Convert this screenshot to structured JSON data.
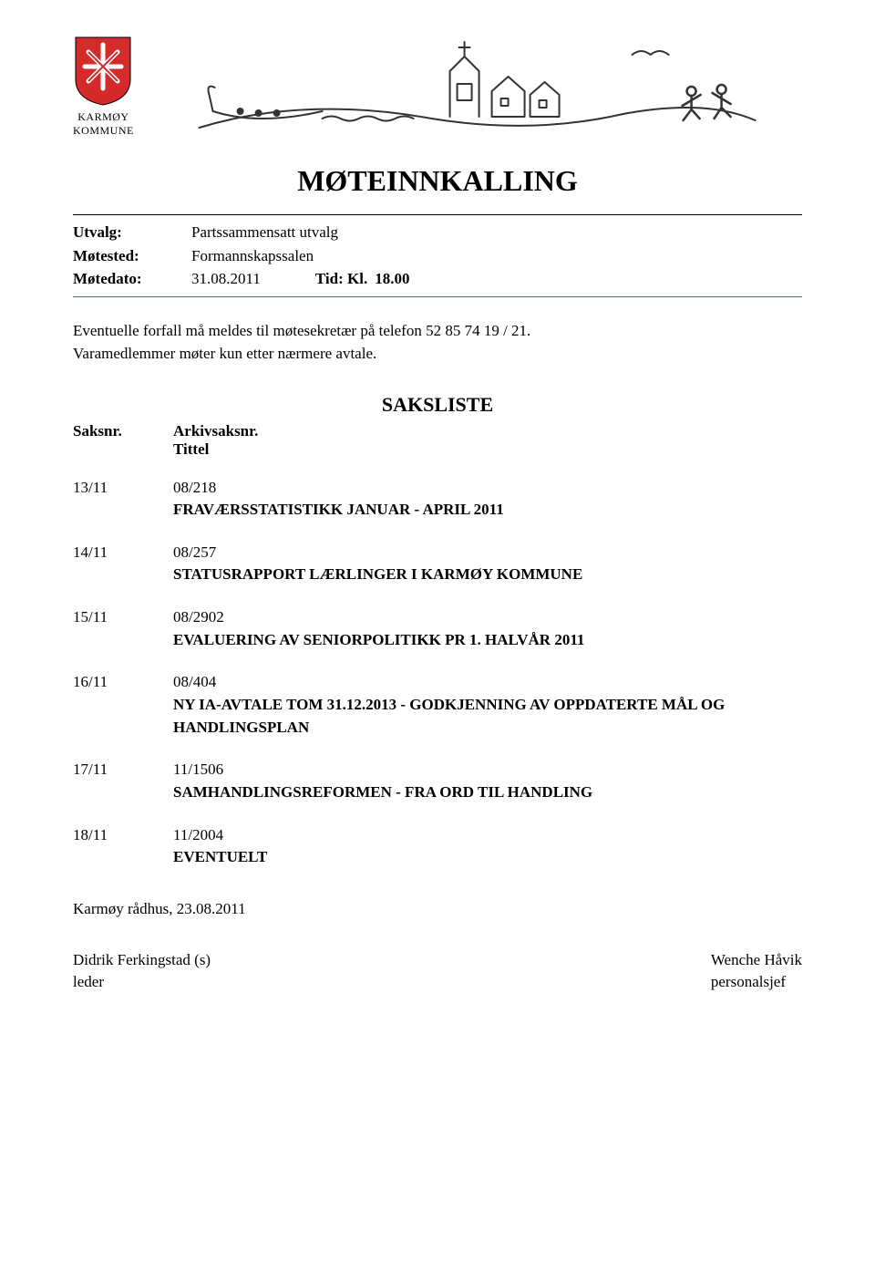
{
  "colors": {
    "shield_red": "#d42a2a",
    "shield_white": "#ffffff",
    "illustration_stroke": "#333333",
    "rule_blue": "#4a6aa0",
    "text": "#000000",
    "background": "#ffffff"
  },
  "org": {
    "name_line1": "KARMØY",
    "name_line2": "KOMMUNE"
  },
  "title": "MØTEINNKALLING",
  "meta": {
    "utvalg_label": "Utvalg:",
    "utvalg_value": "Partssammensatt utvalg",
    "motested_label": "Møtested:",
    "motested_value": "Formannskapssalen",
    "motedato_label": "Møtedato:",
    "motedato_value": "31.08.2011",
    "tid_label": "Tid: Kl.",
    "tid_value": "18.00"
  },
  "intro_line1": "Eventuelle forfall må meldes til møtesekretær på telefon 52 85 74 19 / 21.",
  "intro_line2": "Varamedlemmer møter kun etter nærmere avtale.",
  "saksliste_heading": "SAKSLISTE",
  "col_labels": {
    "saksnr": "Saksnr.",
    "arkivsaksnr": "Arkivsaksnr.",
    "tittel": "Tittel"
  },
  "items": [
    {
      "saksnr": "13/11",
      "arkiv": "08/218",
      "tittel": "FRAVÆRSSTATISTIKK JANUAR - APRIL 2011"
    },
    {
      "saksnr": "14/11",
      "arkiv": "08/257",
      "tittel": "STATUSRAPPORT LÆRLINGER I KARMØY KOMMUNE"
    },
    {
      "saksnr": "15/11",
      "arkiv": "08/2902",
      "tittel": "EVALUERING AV SENIORPOLITIKK PR 1. HALVÅR 2011"
    },
    {
      "saksnr": "16/11",
      "arkiv": "08/404",
      "tittel": "NY IA-AVTALE TOM 31.12.2013 - GODKJENNING AV OPPDATERTE MÅL OG HANDLINGSPLAN"
    },
    {
      "saksnr": "17/11",
      "arkiv": "11/1506",
      "tittel": "SAMHANDLINGSREFORMEN - FRA ORD TIL HANDLING"
    },
    {
      "saksnr": "18/11",
      "arkiv": "11/2004",
      "tittel": "EVENTUELT"
    }
  ],
  "footer": {
    "place_date": "Karmøy rådhus, 23.08.2011",
    "left_name": "Didrik Ferkingstad (s)",
    "left_role": "leder",
    "right_name": "Wenche Håvik",
    "right_role": "personalsjef"
  }
}
